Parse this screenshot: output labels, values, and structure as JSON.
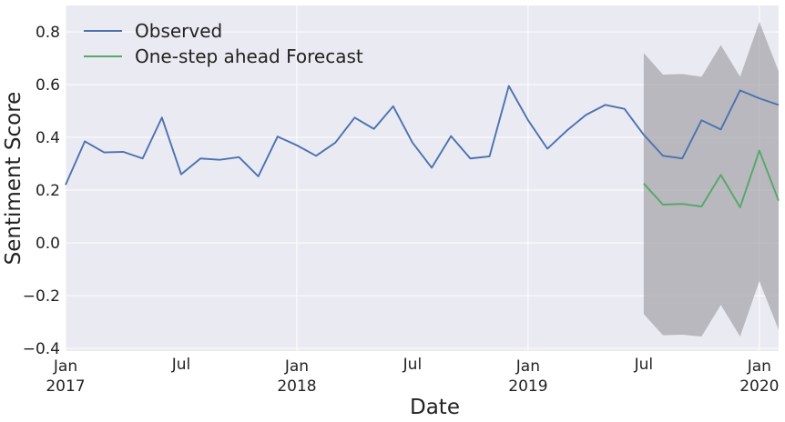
{
  "chart_data": {
    "type": "line",
    "xlabel": "Date",
    "ylabel": "Sentiment Score",
    "x_range": [
      "2017-01",
      "2020-02"
    ],
    "ylim": [
      -0.41,
      0.9
    ],
    "grid": true,
    "legend_position": "top-left",
    "y_ticks": [
      {
        "value": 0.8,
        "label": "0.8"
      },
      {
        "value": 0.6,
        "label": "0.6"
      },
      {
        "value": 0.4,
        "label": "0.4"
      },
      {
        "value": 0.2,
        "label": "0.2"
      },
      {
        "value": 0.0,
        "label": "0.0"
      },
      {
        "value": -0.2,
        "label": "−0.2"
      },
      {
        "value": -0.4,
        "label": "−0.4"
      }
    ],
    "x_ticks": [
      {
        "date": "2017-01",
        "label": "Jan",
        "year": "2017",
        "major": true
      },
      {
        "date": "2017-07",
        "label": "Jul",
        "major": false
      },
      {
        "date": "2018-01",
        "label": "Jan",
        "year": "2018",
        "major": true
      },
      {
        "date": "2018-07",
        "label": "Jul",
        "major": false
      },
      {
        "date": "2019-01",
        "label": "Jan",
        "year": "2019",
        "major": true
      },
      {
        "date": "2019-07",
        "label": "Jul",
        "major": false
      },
      {
        "date": "2020-01",
        "label": "Jan",
        "year": "2020",
        "major": true
      }
    ],
    "series": [
      {
        "name": "Observed",
        "color": "#4c72b0",
        "points": [
          {
            "date": "2017-01",
            "y": 0.22
          },
          {
            "date": "2017-02",
            "y": 0.385
          },
          {
            "date": "2017-03",
            "y": 0.343
          },
          {
            "date": "2017-04",
            "y": 0.345
          },
          {
            "date": "2017-05",
            "y": 0.32
          },
          {
            "date": "2017-06",
            "y": 0.475
          },
          {
            "date": "2017-07",
            "y": 0.26
          },
          {
            "date": "2017-08",
            "y": 0.32
          },
          {
            "date": "2017-09",
            "y": 0.315
          },
          {
            "date": "2017-10",
            "y": 0.325
          },
          {
            "date": "2017-11",
            "y": 0.252
          },
          {
            "date": "2017-12",
            "y": 0.403
          },
          {
            "date": "2018-01",
            "y": 0.37
          },
          {
            "date": "2018-02",
            "y": 0.33
          },
          {
            "date": "2018-03",
            "y": 0.38
          },
          {
            "date": "2018-04",
            "y": 0.475
          },
          {
            "date": "2018-05",
            "y": 0.432
          },
          {
            "date": "2018-06",
            "y": 0.518
          },
          {
            "date": "2018-07",
            "y": 0.38
          },
          {
            "date": "2018-08",
            "y": 0.285
          },
          {
            "date": "2018-09",
            "y": 0.405
          },
          {
            "date": "2018-10",
            "y": 0.32
          },
          {
            "date": "2018-11",
            "y": 0.328
          },
          {
            "date": "2018-12",
            "y": 0.595
          },
          {
            "date": "2019-01",
            "y": 0.465
          },
          {
            "date": "2019-02",
            "y": 0.357
          },
          {
            "date": "2019-03",
            "y": 0.425
          },
          {
            "date": "2019-04",
            "y": 0.485
          },
          {
            "date": "2019-05",
            "y": 0.523
          },
          {
            "date": "2019-06",
            "y": 0.508
          },
          {
            "date": "2019-07",
            "y": 0.41
          },
          {
            "date": "2019-08",
            "y": 0.33
          },
          {
            "date": "2019-09",
            "y": 0.32
          },
          {
            "date": "2019-10",
            "y": 0.465
          },
          {
            "date": "2019-11",
            "y": 0.43
          },
          {
            "date": "2019-12",
            "y": 0.578
          },
          {
            "date": "2020-01",
            "y": 0.548
          },
          {
            "date": "2020-02",
            "y": 0.523
          }
        ]
      },
      {
        "name": "One-step ahead Forecast",
        "color": "#55a868",
        "points": [
          {
            "date": "2019-07",
            "y": 0.225
          },
          {
            "date": "2019-08",
            "y": 0.145
          },
          {
            "date": "2019-09",
            "y": 0.148
          },
          {
            "date": "2019-10",
            "y": 0.138
          },
          {
            "date": "2019-11",
            "y": 0.258
          },
          {
            "date": "2019-12",
            "y": 0.135
          },
          {
            "date": "2020-01",
            "y": 0.35
          },
          {
            "date": "2020-02",
            "y": 0.16
          }
        ]
      }
    ],
    "confidence_interval": {
      "color": "#9a9a9e",
      "points": [
        {
          "date": "2019-07",
          "upper": 0.72,
          "lower": -0.27
        },
        {
          "date": "2019-08",
          "upper": 0.638,
          "lower": -0.35
        },
        {
          "date": "2019-09",
          "upper": 0.64,
          "lower": -0.348
        },
        {
          "date": "2019-10",
          "upper": 0.63,
          "lower": -0.355
        },
        {
          "date": "2019-11",
          "upper": 0.75,
          "lower": -0.235
        },
        {
          "date": "2019-12",
          "upper": 0.63,
          "lower": -0.355
        },
        {
          "date": "2020-01",
          "upper": 0.838,
          "lower": -0.145
        },
        {
          "date": "2020-02",
          "upper": 0.65,
          "lower": -0.33
        }
      ]
    },
    "plot_background": "#eaeaf2",
    "grid_color": "#ffffff"
  }
}
